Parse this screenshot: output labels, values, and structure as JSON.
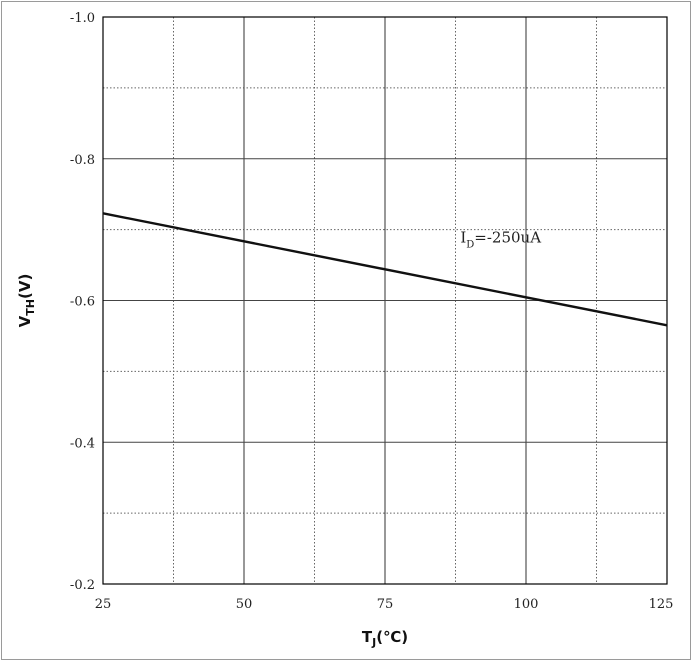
{
  "chart_data": {
    "type": "line",
    "title": "",
    "xlabel": "T",
    "xlabel_sub": "J",
    "xlabel_unit": "(℃)",
    "ylabel": "V",
    "ylabel_sub": "TH",
    "ylabel_unit": "(V)",
    "xlim": [
      25,
      125
    ],
    "ylim": [
      -0.2,
      -1.0
    ],
    "x_ticks": [
      25,
      50,
      75,
      100,
      125
    ],
    "x_tick_labels": [
      "25",
      "50",
      "75",
      "100",
      "125"
    ],
    "y_ticks": [
      -0.2,
      -0.4,
      -0.6,
      -0.8,
      -1.0
    ],
    "y_tick_labels": [
      "-0.2",
      "-0.4",
      "-0.6",
      "-0.8",
      "-1.0"
    ],
    "grid": true,
    "series": [
      {
        "name": "",
        "color": "#111111",
        "x": [
          25,
          125
        ],
        "y": [
          -0.723,
          -0.565
        ]
      }
    ],
    "annotation": {
      "prefix": "I",
      "sub": "D",
      "suffix": "=-250uA",
      "x": 88,
      "y": -0.665
    }
  }
}
